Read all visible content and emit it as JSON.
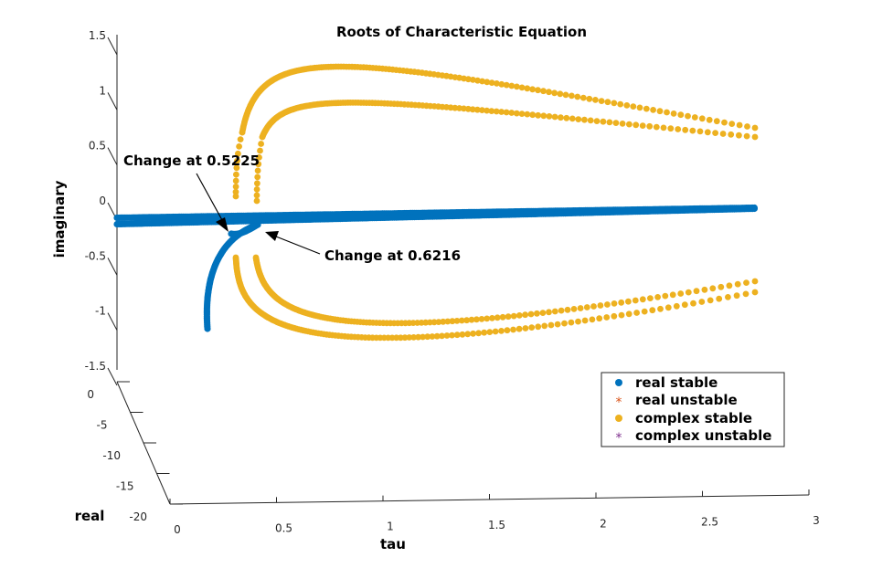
{
  "chart_data": {
    "type": "scatter",
    "title": "Roots of Characteristic Equation",
    "xlabel": "tau",
    "ylabel": "real",
    "zlabel": "imaginary",
    "xlim": [
      0,
      3
    ],
    "ylim": [
      -20,
      0
    ],
    "zlim": [
      -1.5,
      1.5
    ],
    "x_ticks": [
      "0",
      "0.5",
      "1",
      "1.5",
      "2",
      "2.5",
      "3"
    ],
    "y_ticks": [
      "0",
      "-5",
      "-10",
      "-15",
      "-20"
    ],
    "z_ticks": [
      "1.5",
      "1",
      "0.5",
      "0",
      "-0.5",
      "-1",
      "-1.5"
    ],
    "legend": {
      "placement": "lower-right",
      "entries": [
        {
          "label": "real stable",
          "color": "#0072BD",
          "marker": "dot"
        },
        {
          "label": "real unstable",
          "color": "#D95319",
          "marker": "asterisk"
        },
        {
          "label": "complex stable",
          "color": "#EDB120",
          "marker": "dot"
        },
        {
          "label": "complex unstable",
          "color": "#7E2F8E",
          "marker": "asterisk"
        }
      ]
    },
    "annotations": [
      {
        "text": "Change at 0.5225",
        "tau": 0.5225
      },
      {
        "text": "Change at 0.6216",
        "tau": 0.6216
      }
    ],
    "series": [
      {
        "name": "real stable",
        "color": "#0072BD"
      },
      {
        "name": "complex stable",
        "color": "#EDB120"
      }
    ]
  }
}
